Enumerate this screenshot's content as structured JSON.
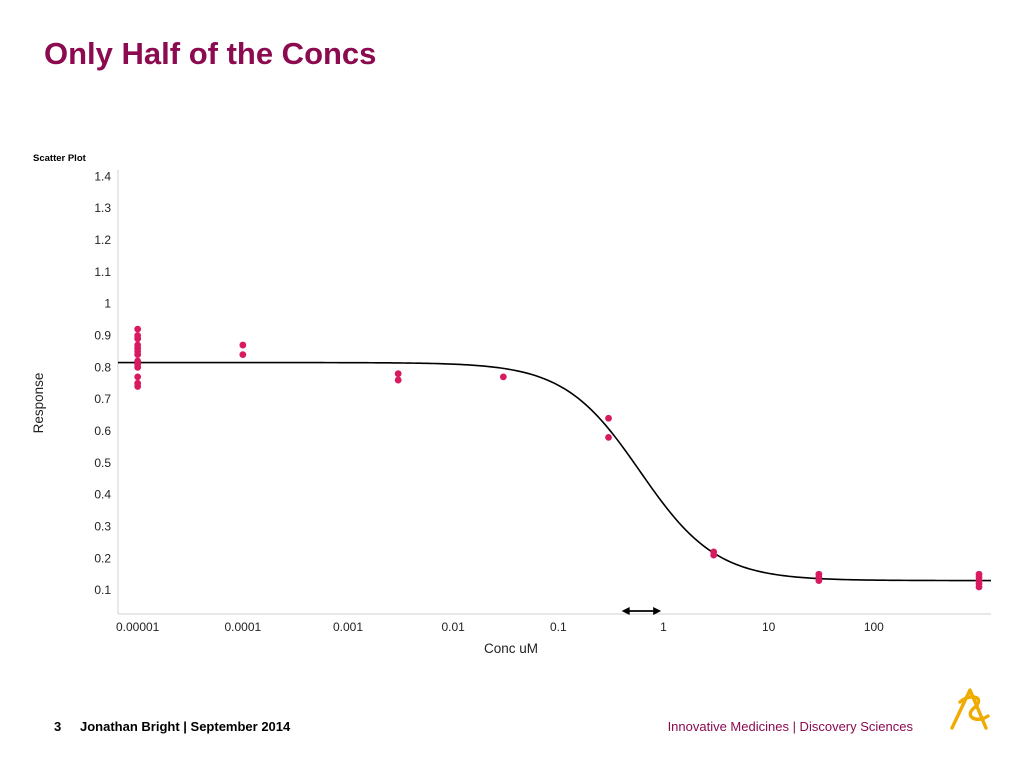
{
  "slide": {
    "title": "Only Half of the Concs",
    "page_number": "3",
    "author_date": "Jonathan Bright | September 2014",
    "department": "Innovative Medicines | Discovery Sciences"
  },
  "colors": {
    "title": "#8b0a50",
    "points": "#d81b60",
    "curve": "#000000",
    "logo": "#f0ab00"
  },
  "icons": {
    "logo": "company-logo-icon",
    "range": "double-arrow-icon"
  },
  "chart_data": {
    "type": "scatter",
    "title": "Scatter Plot",
    "xlabel": "Conc uM",
    "ylabel": "Response",
    "xscale": "log",
    "xlim": [
      6.5e-06,
      1300
    ],
    "ylim": [
      0.025,
      1.42
    ],
    "xticks": [
      {
        "value": 1e-05,
        "label": "0.00001"
      },
      {
        "value": 0.0001,
        "label": "0.0001"
      },
      {
        "value": 0.001,
        "label": "0.001"
      },
      {
        "value": 0.01,
        "label": "0.01"
      },
      {
        "value": 0.1,
        "label": "0.1"
      },
      {
        "value": 1,
        "label": "1"
      },
      {
        "value": 10,
        "label": "10"
      },
      {
        "value": 100,
        "label": "100"
      }
    ],
    "yticks": [
      {
        "value": 0.1,
        "label": "0.1"
      },
      {
        "value": 0.2,
        "label": "0.2"
      },
      {
        "value": 0.3,
        "label": "0.3"
      },
      {
        "value": 0.4,
        "label": "0.4"
      },
      {
        "value": 0.5,
        "label": "0.5"
      },
      {
        "value": 0.6,
        "label": "0.6"
      },
      {
        "value": 0.7,
        "label": "0.7"
      },
      {
        "value": 0.8,
        "label": "0.8"
      },
      {
        "value": 0.9,
        "label": "0.9"
      },
      {
        "value": 1,
        "label": "1"
      },
      {
        "value": 1.1,
        "label": "1.1"
      },
      {
        "value": 1.2,
        "label": "1.2"
      },
      {
        "value": 1.3,
        "label": "1.3"
      },
      {
        "value": 1.4,
        "label": "1.4"
      }
    ],
    "points": [
      {
        "x": 1e-05,
        "y": 0.92
      },
      {
        "x": 1e-05,
        "y": 0.9
      },
      {
        "x": 1e-05,
        "y": 0.89
      },
      {
        "x": 1e-05,
        "y": 0.87
      },
      {
        "x": 1e-05,
        "y": 0.86
      },
      {
        "x": 1e-05,
        "y": 0.85
      },
      {
        "x": 1e-05,
        "y": 0.84
      },
      {
        "x": 1e-05,
        "y": 0.82
      },
      {
        "x": 1e-05,
        "y": 0.81
      },
      {
        "x": 1e-05,
        "y": 0.8
      },
      {
        "x": 1e-05,
        "y": 0.77
      },
      {
        "x": 1e-05,
        "y": 0.75
      },
      {
        "x": 1e-05,
        "y": 0.74
      },
      {
        "x": 0.0001,
        "y": 0.87
      },
      {
        "x": 0.0001,
        "y": 0.84
      },
      {
        "x": 0.003,
        "y": 0.78
      },
      {
        "x": 0.003,
        "y": 0.76
      },
      {
        "x": 0.03,
        "y": 0.77
      },
      {
        "x": 0.3,
        "y": 0.64
      },
      {
        "x": 0.3,
        "y": 0.58
      },
      {
        "x": 3,
        "y": 0.22
      },
      {
        "x": 3,
        "y": 0.21
      },
      {
        "x": 30,
        "y": 0.15
      },
      {
        "x": 30,
        "y": 0.14
      },
      {
        "x": 30,
        "y": 0.13
      },
      {
        "x": 1000,
        "y": 0.15
      },
      {
        "x": 1000,
        "y": 0.14
      },
      {
        "x": 1000,
        "y": 0.13
      },
      {
        "x": 1000,
        "y": 0.12
      },
      {
        "x": 1000,
        "y": 0.11
      }
    ],
    "fit": {
      "top": 0.815,
      "bottom": 0.13,
      "ic50": 0.6,
      "hill": 1.2
    },
    "annotation_range": [
      0.4,
      0.95
    ]
  }
}
